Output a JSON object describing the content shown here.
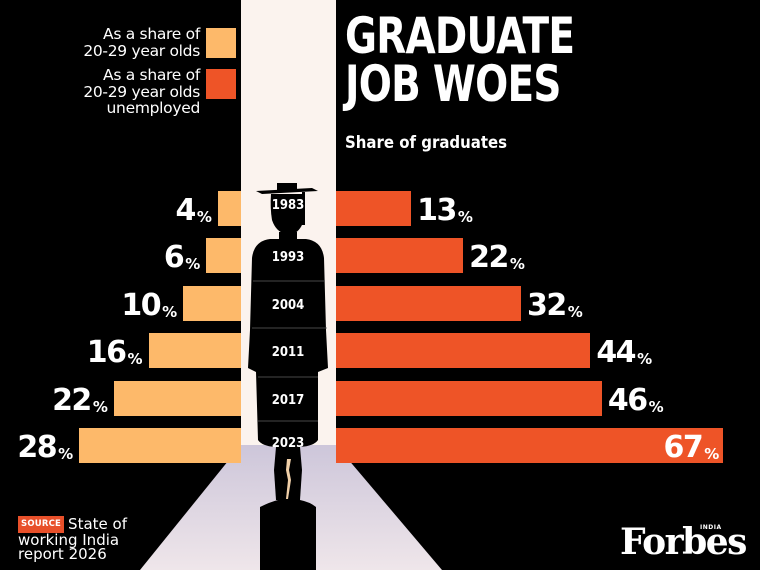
{
  "header": {
    "title": "GRADUATE\nJOB WOES",
    "subtitle": "Share of graduates"
  },
  "legend": [
    {
      "label": "As a share of\n20-29  year olds",
      "color": "#fdb96a"
    },
    {
      "label": "As a share of\n20-29 year olds\nunemployed",
      "color": "#ee5427"
    }
  ],
  "colors": {
    "background": "#000000",
    "strip": "#fbf3ee",
    "road": "#d6cfe0",
    "share_all": "#fdb96a",
    "share_unemployed": "#ee5427"
  },
  "rows": [
    {
      "year": "1983",
      "left_value": "4",
      "right_value": "13",
      "pct": "%"
    },
    {
      "year": "1993",
      "left_value": "6",
      "right_value": "22",
      "pct": "%"
    },
    {
      "year": "2004",
      "left_value": "10",
      "right_value": "32",
      "pct": "%"
    },
    {
      "year": "2011",
      "left_value": "16",
      "right_value": "44",
      "pct": "%"
    },
    {
      "year": "2017",
      "left_value": "22",
      "right_value": "46",
      "pct": "%"
    },
    {
      "year": "2023",
      "left_value": "28",
      "right_value": "67",
      "pct": "%"
    }
  ],
  "source": {
    "badge": "SOURCE",
    "text": "State of\nworking India\nreport 2026"
  },
  "logo": {
    "name": "Forbes",
    "edition": "INDIA"
  },
  "chart_data": {
    "type": "bar",
    "orientation": "horizontal",
    "layout": "butterfly",
    "title": "GRADUATE JOB WOES",
    "subtitle": "Share of graduates",
    "categories": [
      "1983",
      "1993",
      "2004",
      "2011",
      "2017",
      "2023"
    ],
    "series": [
      {
        "name": "As a share of 20-29 year olds",
        "color": "#fdb96a",
        "side": "left",
        "values": [
          4,
          6,
          10,
          16,
          22,
          28
        ]
      },
      {
        "name": "As a share of 20-29 year olds unemployed",
        "color": "#ee5427",
        "side": "right",
        "values": [
          13,
          22,
          32,
          44,
          46,
          67
        ]
      }
    ],
    "unit": "%",
    "xlabel": "",
    "ylabel": "",
    "grid": false,
    "legend_position": "top-left",
    "annotations": [
      "Source: State of working India report 2026",
      "Forbes India"
    ]
  }
}
